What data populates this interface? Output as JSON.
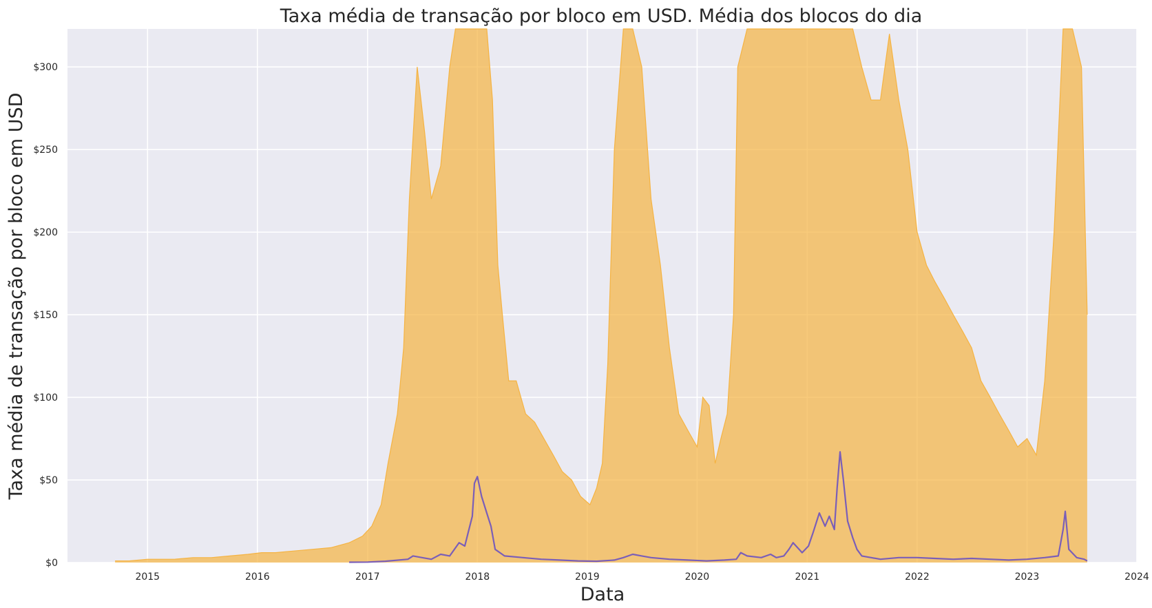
{
  "chart_data": {
    "type": "area",
    "title": "Taxa média de transação por bloco em USD. Média dos blocos do dia",
    "xlabel": "Data",
    "ylabel": "Taxa média de transação por bloco em USD",
    "x_ticks": [
      "2015",
      "2016",
      "2017",
      "2018",
      "2019",
      "2020",
      "2021",
      "2022",
      "2023",
      "2024"
    ],
    "y_ticks": [
      "$0",
      "$50",
      "$100",
      "$150",
      "$200",
      "$250",
      "$300"
    ],
    "y_tick_values": [
      0,
      50,
      100,
      150,
      200,
      250,
      300
    ],
    "xlim": [
      "2014-04-10",
      "2024-01-01"
    ],
    "ylim": [
      0,
      323
    ],
    "grid": true,
    "legend": "none",
    "background_color": "#eaeaf2",
    "series": [
      {
        "color": "#f5b342",
        "fill": true,
        "x": [
          "2014-09-15",
          "2014-11-01",
          "2015-01-01",
          "2015-04-01",
          "2015-06-01",
          "2015-08-01",
          "2015-10-01",
          "2015-12-01",
          "2016-01-15",
          "2016-03-01",
          "2016-05-01",
          "2016-07-01",
          "2016-09-01",
          "2016-11-01",
          "2016-12-15",
          "2017-01-15",
          "2017-02-15",
          "2017-03-10",
          "2017-04-10",
          "2017-05-01",
          "2017-05-20",
          "2017-06-15",
          "2017-07-10",
          "2017-08-01",
          "2017-09-01",
          "2017-10-01",
          "2017-10-20",
          "2017-11-15",
          "2017-12-15",
          "2018-01-10",
          "2018-02-01",
          "2018-02-20",
          "2018-03-10",
          "2018-03-25",
          "2018-04-15",
          "2018-05-10",
          "2018-06-10",
          "2018-07-10",
          "2018-08-10",
          "2018-09-10",
          "2018-10-10",
          "2018-11-10",
          "2018-12-10",
          "2019-01-10",
          "2019-02-01",
          "2019-02-20",
          "2019-03-10",
          "2019-04-01",
          "2019-05-01",
          "2019-06-01",
          "2019-07-01",
          "2019-08-01",
          "2019-09-01",
          "2019-10-01",
          "2019-11-01",
          "2019-12-01",
          "2020-01-01",
          "2020-01-20",
          "2020-02-10",
          "2020-03-01",
          "2020-03-20",
          "2020-04-10",
          "2020-05-01",
          "2020-05-15",
          "2020-06-15",
          "2020-07-10",
          "2020-08-01",
          "2020-09-01",
          "2020-10-01",
          "2020-11-01",
          "2020-12-01",
          "2021-01-01",
          "2021-02-01",
          "2021-03-01",
          "2021-04-01",
          "2021-05-01",
          "2021-06-01",
          "2021-07-01",
          "2021-08-01",
          "2021-09-01",
          "2021-10-01",
          "2021-11-01",
          "2021-12-01",
          "2022-01-01",
          "2022-02-01",
          "2022-03-01",
          "2022-04-01",
          "2022-05-01",
          "2022-06-01",
          "2022-07-01",
          "2022-08-01",
          "2022-09-01",
          "2022-10-01",
          "2022-11-01",
          "2022-12-01",
          "2023-01-01",
          "2023-02-01",
          "2023-03-01",
          "2023-04-01",
          "2023-05-01",
          "2023-06-01",
          "2023-07-01",
          "2023-07-20"
        ],
        "y": [
          1,
          1,
          2,
          2,
          3,
          3,
          4,
          5,
          6,
          6,
          7,
          8,
          9,
          12,
          16,
          22,
          35,
          60,
          90,
          130,
          220,
          300,
          260,
          220,
          240,
          300,
          323,
          323,
          323,
          323,
          323,
          280,
          180,
          150,
          110,
          110,
          90,
          85,
          75,
          65,
          55,
          50,
          40,
          35,
          45,
          60,
          120,
          250,
          323,
          323,
          300,
          220,
          180,
          130,
          90,
          80,
          70,
          100,
          95,
          60,
          75,
          90,
          150,
          300,
          323,
          323,
          323,
          323,
          323,
          323,
          323,
          323,
          323,
          323,
          323,
          323,
          323,
          300,
          280,
          280,
          320,
          280,
          250,
          200,
          180,
          170,
          160,
          150,
          140,
          130,
          110,
          100,
          90,
          80,
          70,
          75,
          65,
          110,
          200,
          323,
          323,
          300,
          150
        ]
      },
      {
        "color": "#7a5eb8",
        "fill": false,
        "x": [
          "2016-11-01",
          "2017-01-01",
          "2017-03-01",
          "2017-05-15",
          "2017-06-01",
          "2017-07-01",
          "2017-08-01",
          "2017-09-01",
          "2017-10-01",
          "2017-11-01",
          "2017-11-20",
          "2017-12-01",
          "2017-12-15",
          "2017-12-22",
          "2018-01-01",
          "2018-01-15",
          "2018-02-01",
          "2018-02-15",
          "2018-03-01",
          "2018-04-01",
          "2018-06-01",
          "2018-08-01",
          "2018-10-01",
          "2018-12-01",
          "2019-02-01",
          "2019-04-01",
          "2019-05-01",
          "2019-06-01",
          "2019-07-01",
          "2019-08-01",
          "2019-10-01",
          "2019-12-01",
          "2020-02-01",
          "2020-04-01",
          "2020-05-10",
          "2020-05-25",
          "2020-06-15",
          "2020-08-01",
          "2020-09-01",
          "2020-09-20",
          "2020-10-15",
          "2020-11-01",
          "2020-11-15",
          "2020-12-15",
          "2021-01-05",
          "2021-01-20",
          "2021-02-10",
          "2021-03-01",
          "2021-03-15",
          "2021-04-01",
          "2021-04-10",
          "2021-04-20",
          "2021-05-01",
          "2021-05-15",
          "2021-06-01",
          "2021-06-15",
          "2021-07-01",
          "2021-09-01",
          "2021-11-01",
          "2022-01-01",
          "2022-03-01",
          "2022-05-01",
          "2022-07-01",
          "2022-09-01",
          "2022-11-01",
          "2023-01-01",
          "2023-03-01",
          "2023-04-15",
          "2023-05-01",
          "2023-05-08",
          "2023-05-20",
          "2023-06-15",
          "2023-07-10",
          "2023-07-20"
        ],
        "y": [
          0.2,
          0.3,
          0.8,
          2,
          4,
          3,
          2,
          5,
          4,
          12,
          10,
          18,
          28,
          48,
          52,
          40,
          30,
          22,
          8,
          4,
          3,
          2,
          1.5,
          1,
          0.8,
          1.5,
          3,
          5,
          4,
          3,
          2,
          1.5,
          1,
          1.5,
          2,
          6,
          4,
          3,
          5,
          3,
          4,
          8,
          12,
          6,
          10,
          18,
          30,
          22,
          28,
          20,
          45,
          67,
          50,
          25,
          15,
          8,
          4,
          2,
          3,
          3,
          2.5,
          2,
          2.5,
          2,
          1.5,
          2,
          3,
          4,
          20,
          31,
          8,
          3,
          2,
          1
        ]
      }
    ]
  }
}
